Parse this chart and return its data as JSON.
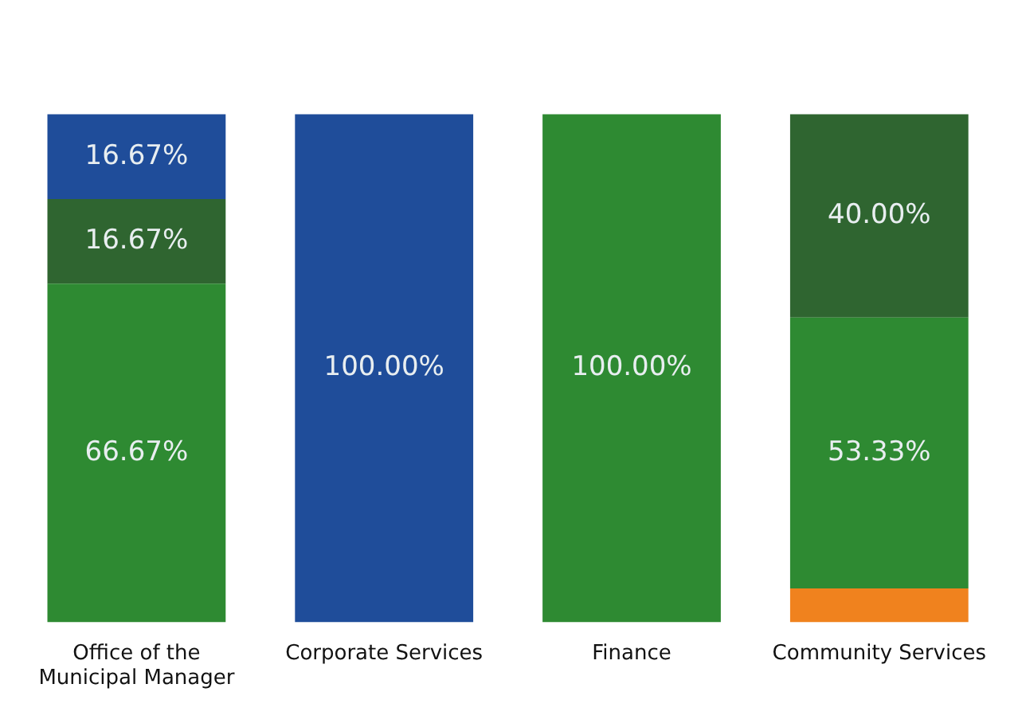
{
  "chart_data": {
    "type": "bar",
    "stacked": true,
    "categories": [
      "Office of the\nMunicipal Manager",
      "Corporate Services",
      "Finance",
      "Community Services"
    ],
    "grid": false,
    "legend": false,
    "tick_labels": "x",
    "series": [
      {
        "color": "#f0821e",
        "values": [
          null,
          null,
          null,
          6.67
        ],
        "value_labels": [
          null,
          null,
          null,
          null
        ]
      },
      {
        "color": "#2e8a32",
        "values": [
          66.67,
          null,
          100,
          53.33
        ],
        "value_labels": [
          "66.67%",
          null,
          "100.00%",
          "53.33%"
        ]
      },
      {
        "color": "#2f6530",
        "values": [
          16.67,
          null,
          null,
          40
        ],
        "value_labels": [
          "16.67%",
          null,
          null,
          "40.00%"
        ]
      },
      {
        "color": "#1f4d9a",
        "values": [
          16.67,
          100,
          null,
          null
        ],
        "value_labels": [
          "16.67%",
          "100.00%",
          null,
          null
        ]
      }
    ]
  }
}
